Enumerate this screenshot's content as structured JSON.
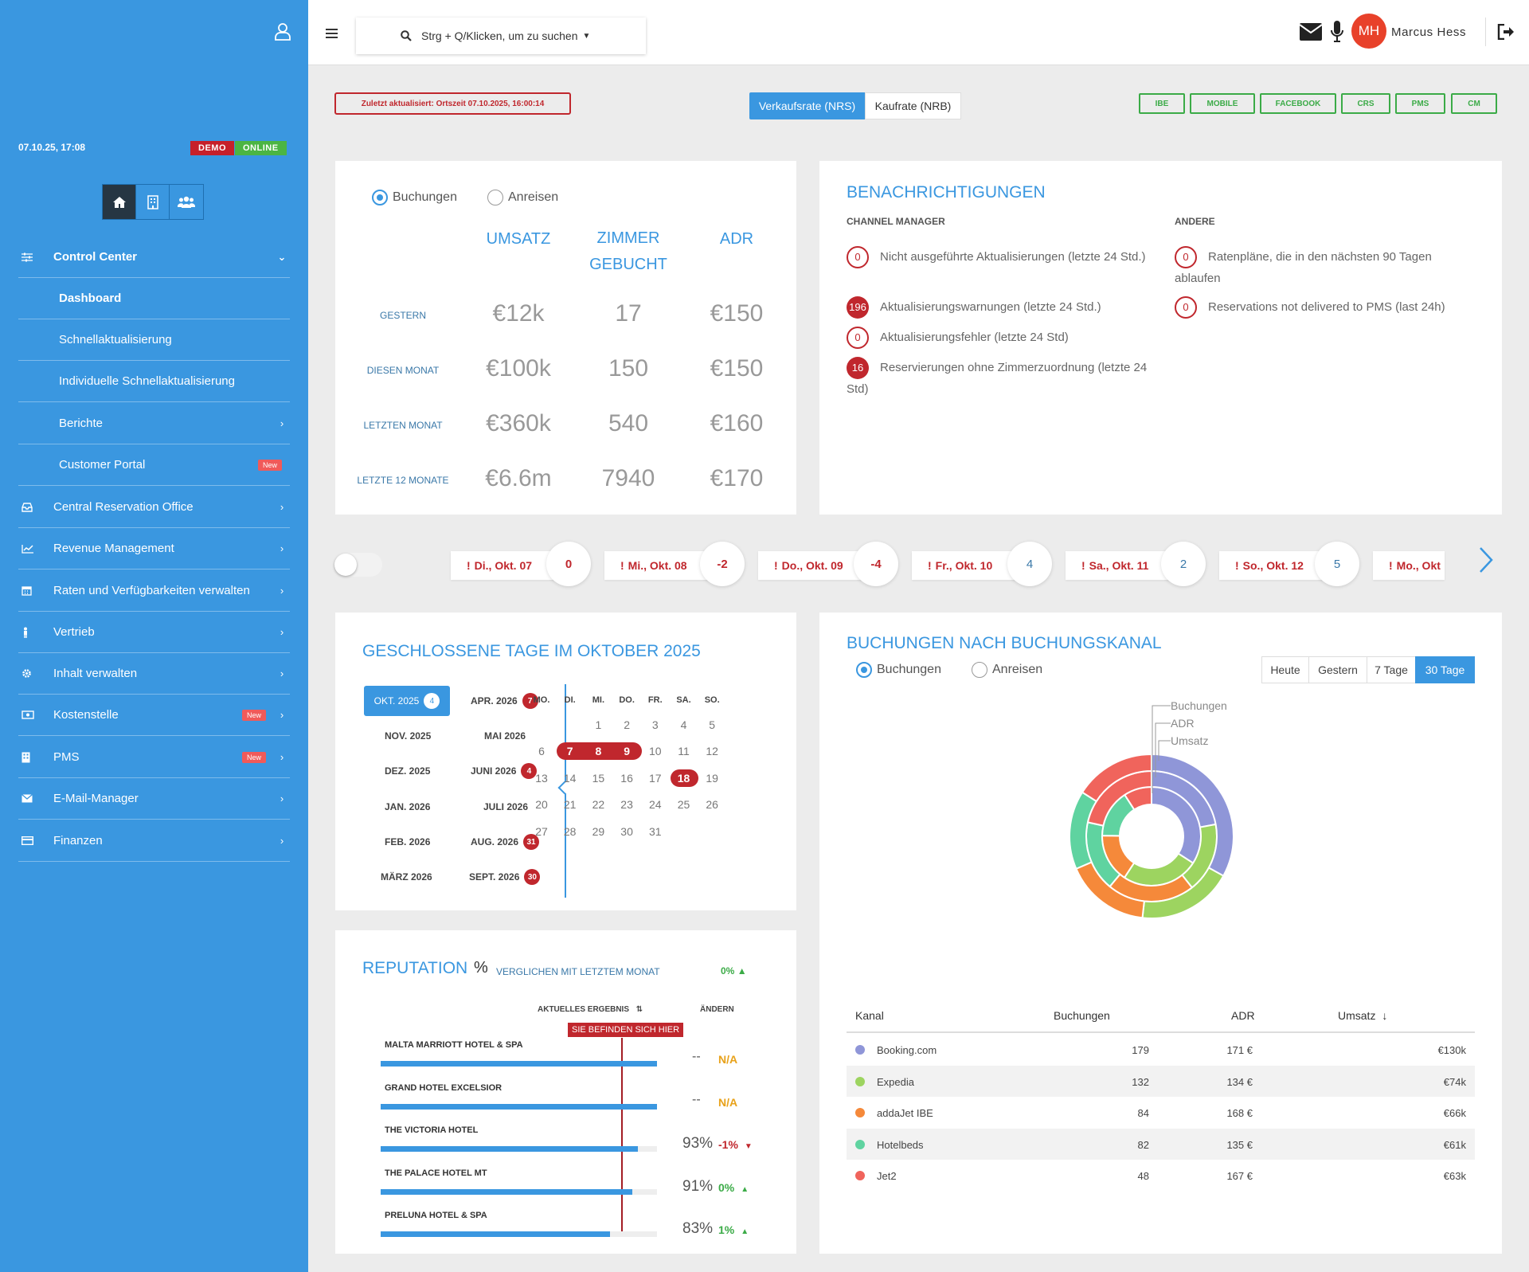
{
  "sidebar": {
    "datetime": "07.10.25, 17:08",
    "badge_demo": "DEMO",
    "badge_online": "ONLINE",
    "items": [
      {
        "label": "Control Center",
        "icon": "sliders-icon"
      },
      {
        "label": "Dashboard"
      },
      {
        "label": "Schnellaktualisierung"
      },
      {
        "label": "Individuelle Schnellaktualisierung"
      },
      {
        "label": "Berichte"
      },
      {
        "label": "Customer Portal",
        "badge": "New"
      },
      {
        "label": "Central Reservation Office",
        "icon": "inbox-icon"
      },
      {
        "label": "Revenue Management",
        "icon": "chart-line-icon"
      },
      {
        "label": "Raten und Verfügbarkeiten verwalten",
        "icon": "calendar-icon"
      },
      {
        "label": "Vertrieb",
        "icon": "person-icon"
      },
      {
        "label": "Inhalt verwalten",
        "icon": "gear-icon"
      },
      {
        "label": "Kostenstelle",
        "icon": "money-icon",
        "badge": "New"
      },
      {
        "label": "PMS",
        "icon": "building-icon",
        "badge": "New"
      },
      {
        "label": "E-Mail-Manager",
        "icon": "envelope-icon"
      },
      {
        "label": "Finanzen",
        "icon": "credit-card-icon"
      }
    ]
  },
  "topbar": {
    "search_placeholder": "Strg + Q/Klicken, um zu suchen",
    "user_initials": "MH",
    "user_name": "Marcus Hess"
  },
  "toolbar": {
    "last_updated": "Zuletzt aktualisiert: Ortszeit 07.10.2025, 16:00:14",
    "rate_tabs": [
      "Verkaufsrate (NRS)",
      "Kaufrate (NRB)"
    ],
    "channels": [
      "IBE",
      "MOBILE",
      "FACEBOOK",
      "CRS",
      "PMS",
      "CM"
    ]
  },
  "kpi": {
    "radio": [
      "Buchungen",
      "Anreisen"
    ],
    "columns": [
      "UMSATZ",
      "ZIMMER GEBUCHT",
      "ADR"
    ],
    "rows": [
      {
        "label": "GESTERN",
        "umsatz": "€12k",
        "zimmer": "17",
        "adr": "€150"
      },
      {
        "label": "DIESEN MONAT",
        "umsatz": "€100k",
        "zimmer": "150",
        "adr": "€150"
      },
      {
        "label": "LETZTEN MONAT",
        "umsatz": "€360k",
        "zimmer": "540",
        "adr": "€160"
      },
      {
        "label": "LETZTE 12 MONATE",
        "umsatz": "€6.6m",
        "zimmer": "7940",
        "adr": "€170"
      }
    ]
  },
  "notifications": {
    "title": "BENACHRICHTIGUNGEN",
    "cm_title": "CHANNEL MANAGER",
    "other_title": "ANDERE",
    "cm": [
      {
        "count": "0",
        "text": "Nicht ausgeführte Aktualisierungen (letzte 24 Std.)"
      },
      {
        "count": "196",
        "text": "Aktualisierungswarnungen (letzte 24 Std.)"
      },
      {
        "count": "0",
        "text": "Aktualisierungsfehler (letzte 24 Std)"
      },
      {
        "count": "16",
        "text": "Reservierungen ohne Zimmerzuordnung (letzte 24 Std)"
      }
    ],
    "other": [
      {
        "count": "0",
        "text": "Ratenpläne, die in den nächsten 90 Tagen ablaufen"
      },
      {
        "count": "0",
        "text": "Reservations not delivered to PMS (last 24h)"
      }
    ]
  },
  "days": [
    {
      "label": "Di., Okt. 07",
      "value": "0"
    },
    {
      "label": "Mi., Okt. 08",
      "value": "-2"
    },
    {
      "label": "Do., Okt. 09",
      "value": "-4"
    },
    {
      "label": "Fr., Okt. 10",
      "value": "4"
    },
    {
      "label": "Sa., Okt. 11",
      "value": "2"
    },
    {
      "label": "So., Okt. 12",
      "value": "5"
    },
    {
      "label": "Mo., Okt"
    }
  ],
  "closed_days": {
    "title": "GESCHLOSSENE TAGE IM OKTOBER 2025",
    "months_left": [
      {
        "label": "OKT. 2025",
        "count": "4"
      },
      {
        "label": "NOV. 2025"
      },
      {
        "label": "DEZ. 2025"
      },
      {
        "label": "JAN. 2026"
      },
      {
        "label": "FEB. 2026"
      },
      {
        "label": "MÄRZ 2026"
      }
    ],
    "months_right": [
      {
        "label": "APR. 2026",
        "count": "7"
      },
      {
        "label": "MAI 2026"
      },
      {
        "label": "JUNI 2026",
        "count": "4"
      },
      {
        "label": "JULI 2026"
      },
      {
        "label": "AUG. 2026",
        "count": "31"
      },
      {
        "label": "SEPT. 2026",
        "count": "30"
      }
    ],
    "weekdays": [
      "MO.",
      "DI.",
      "MI.",
      "DO.",
      "FR.",
      "SA.",
      "SO."
    ],
    "weeks": [
      [
        "",
        "",
        "1",
        "2",
        "3",
        "4",
        "5"
      ],
      [
        "6",
        "7",
        "8",
        "9",
        "10",
        "11",
        "12"
      ],
      [
        "13",
        "14",
        "15",
        "16",
        "17",
        "18",
        "19"
      ],
      [
        "20",
        "21",
        "22",
        "23",
        "24",
        "25",
        "26"
      ],
      [
        "27",
        "28",
        "29",
        "30",
        "31",
        "",
        ""
      ]
    ],
    "closed": [
      "7",
      "8",
      "9",
      "18"
    ]
  },
  "reputation": {
    "title": "REPUTATION",
    "percent": "%",
    "compare_label": "VERGLICHEN MIT LETZTEM MONAT",
    "compare_value": "0%",
    "col_result": "AKTUELLES ERGEBNIS",
    "col_change": "ÄNDERN",
    "you_are_here": "SIE BEFINDEN SICH HIER",
    "hotels": [
      {
        "name": "MALTA MARRIOTT HOTEL & SPA",
        "score": "--",
        "change": "N/A",
        "trend": "none",
        "fill": 1.0
      },
      {
        "name": "GRAND HOTEL EXCELSIOR",
        "score": "--",
        "change": "N/A",
        "trend": "none",
        "fill": 1.0
      },
      {
        "name": "THE VICTORIA HOTEL",
        "score": "93%",
        "change": "-1%",
        "trend": "down",
        "fill": 0.93
      },
      {
        "name": "THE PALACE HOTEL MT",
        "score": "91%",
        "change": "0%",
        "trend": "up",
        "fill": 0.91
      },
      {
        "name": "PRELUNA HOTEL & SPA",
        "score": "83%",
        "change": "1%",
        "trend": "up",
        "fill": 0.83
      }
    ]
  },
  "channels": {
    "title": "BUCHUNGEN NACH BUCHUNGSKANAL",
    "radio": [
      "Buchungen",
      "Anreisen"
    ],
    "periods": [
      "Heute",
      "Gestern",
      "7 Tage",
      "30 Tage"
    ],
    "legend": [
      "Buchungen",
      "ADR",
      "Umsatz"
    ],
    "table_headers": [
      "Kanal",
      "Buchungen",
      "ADR",
      "Umsatz"
    ],
    "rows": [
      {
        "name": "Booking.com",
        "bookings": "179",
        "adr": "171 €",
        "umsatz": "€130k",
        "color": "#8f96d8"
      },
      {
        "name": "Expedia",
        "bookings": "132",
        "adr": "134 €",
        "umsatz": "€74k",
        "color": "#9dd460"
      },
      {
        "name": "addaJet IBE",
        "bookings": "84",
        "adr": "168 €",
        "umsatz": "€66k",
        "color": "#f5893a"
      },
      {
        "name": "Hotelbeds",
        "bookings": "82",
        "adr": "135 €",
        "umsatz": "€61k",
        "color": "#5fd3a0"
      },
      {
        "name": "Jet2",
        "bookings": "48",
        "adr": "167 €",
        "umsatz": "€63k",
        "color": "#f0645c"
      }
    ]
  },
  "chart_data": {
    "type": "pie",
    "title": "BUCHUNGEN NACH BUCHUNGSKANAL",
    "rings": [
      "Buchungen",
      "ADR",
      "Umsatz"
    ],
    "categories": [
      "Booking.com",
      "Expedia",
      "addaJet IBE",
      "Hotelbeds",
      "Jet2"
    ],
    "series": [
      {
        "name": "Buchungen",
        "values": [
          179,
          132,
          84,
          82,
          48
        ]
      },
      {
        "name": "ADR",
        "values": [
          171,
          134,
          168,
          135,
          167
        ]
      },
      {
        "name": "Umsatz",
        "values": [
          130,
          74,
          66,
          61,
          63
        ]
      }
    ]
  }
}
